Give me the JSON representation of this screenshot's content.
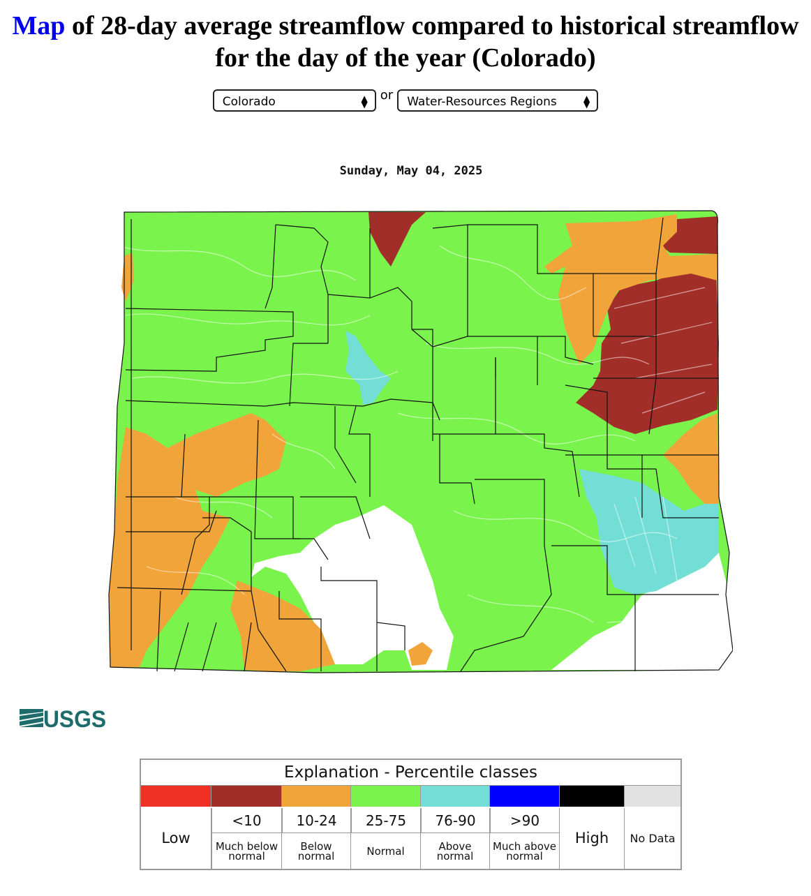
{
  "header": {
    "title_link": "Map",
    "title_rest": " of 28-day average streamflow compared to historical streamflow for the day of the year (Colorado)"
  },
  "selectors": {
    "state_value": "Colorado",
    "or_text": "or",
    "region_value": "Water-Resources Regions"
  },
  "map": {
    "date": "Sunday, May 04, 2025",
    "classes": {
      "much_below": "#a22e2a",
      "below": "#f1a43a",
      "normal": "#7bf34d",
      "above": "#73ded6",
      "no_data": "#ffffff"
    }
  },
  "logo": {
    "text": "USGS",
    "color": "#1e6b6b"
  },
  "legend": {
    "title": "Explanation - Percentile classes",
    "columns": [
      {
        "range": "",
        "desc": "",
        "label": "Low",
        "color": "#ee3124"
      },
      {
        "range": "<10",
        "desc": "Much below normal",
        "color": "#a22e2a"
      },
      {
        "range": "10-24",
        "desc": "Below normal",
        "color": "#f1a43a"
      },
      {
        "range": "25-75",
        "desc": "Normal",
        "color": "#7bf34d"
      },
      {
        "range": "76-90",
        "desc": "Above normal",
        "color": "#73ded6"
      },
      {
        "range": ">90",
        "desc": "Much above normal",
        "color": "#0000ff"
      },
      {
        "range": "",
        "desc": "",
        "label": "High",
        "color": "#000000"
      },
      {
        "range": "",
        "desc": "",
        "label": "No Data",
        "color": "#e2e2e2"
      }
    ]
  }
}
